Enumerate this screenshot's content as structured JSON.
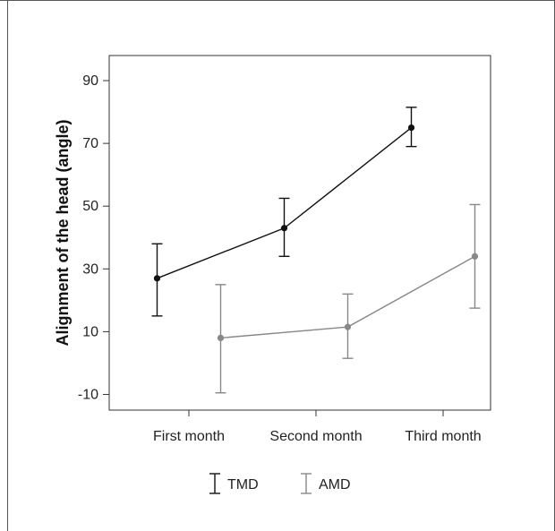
{
  "chart_data": {
    "type": "line",
    "title": "",
    "xlabel": "",
    "ylabel": "Alignment of the head (angle)",
    "categories": [
      "First month",
      "Second month",
      "Third month"
    ],
    "ylim": [
      -15,
      98
    ],
    "yticks": [
      -10,
      10,
      30,
      50,
      70,
      90
    ],
    "grid": false,
    "legend_position": "bottom",
    "series": [
      {
        "name": "TMD",
        "color": "#111111",
        "values": [
          27,
          43,
          75
        ],
        "lower": [
          15,
          34,
          69
        ],
        "upper": [
          38,
          52.5,
          81.5
        ],
        "offset": -0.25
      },
      {
        "name": "AMD",
        "color": "#888888",
        "values": [
          8,
          11.5,
          34
        ],
        "lower": [
          -9.5,
          1.5,
          17.5
        ],
        "upper": [
          25,
          22,
          50.5
        ],
        "offset": 0.25
      }
    ]
  }
}
